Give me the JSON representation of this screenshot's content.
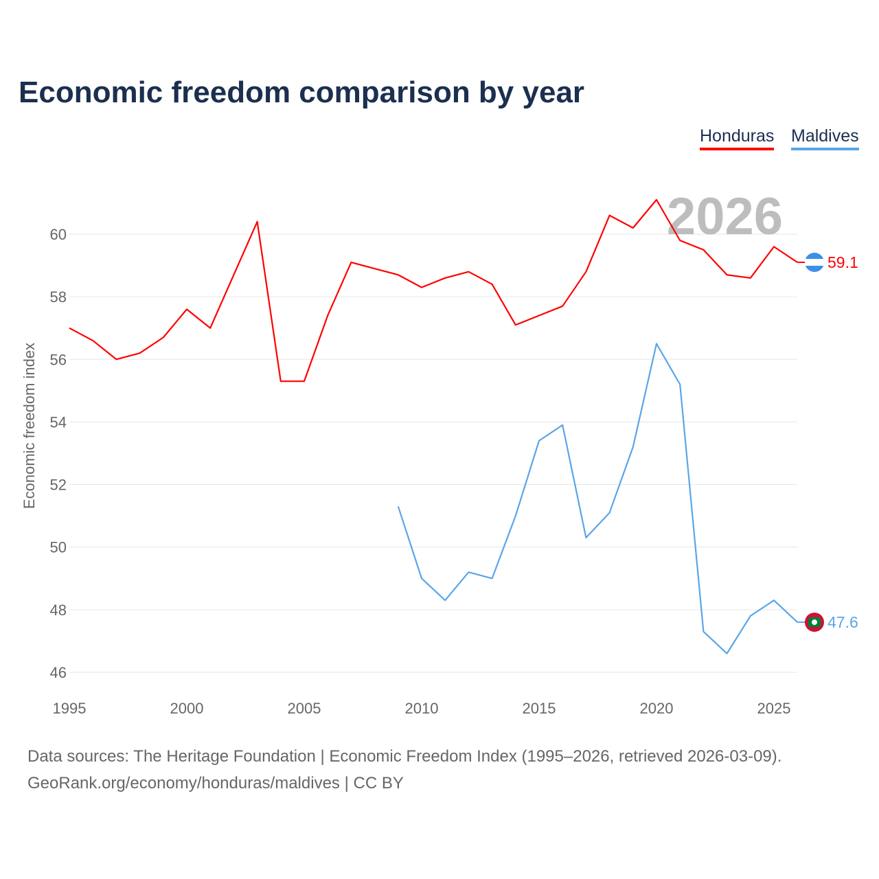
{
  "chart_data": {
    "type": "line",
    "title": "Economic freedom comparison by year",
    "xlabel": "",
    "ylabel": "Economic freedom index",
    "xlim": [
      1995,
      2026
    ],
    "ylim": [
      46,
      61.5
    ],
    "x_ticks": [
      "1995",
      "2000",
      "2005",
      "2010",
      "2015",
      "2020",
      "2025"
    ],
    "y_ticks": [
      "46",
      "48",
      "50",
      "52",
      "54",
      "56",
      "58",
      "60"
    ],
    "grid": true,
    "legend_position": "top-right",
    "watermark_year": "2026",
    "series": [
      {
        "name": "Honduras",
        "color": "#ff0000",
        "end_label": "59.1",
        "x": [
          1995,
          1996,
          1997,
          1998,
          1999,
          2000,
          2001,
          2002,
          2003,
          2004,
          2005,
          2006,
          2007,
          2008,
          2009,
          2010,
          2011,
          2012,
          2013,
          2014,
          2015,
          2016,
          2017,
          2018,
          2019,
          2020,
          2021,
          2022,
          2023,
          2024,
          2025,
          2026
        ],
        "values": [
          57.0,
          56.6,
          56.0,
          56.2,
          56.7,
          57.6,
          57.0,
          58.7,
          60.4,
          55.3,
          55.3,
          57.4,
          59.1,
          58.9,
          58.7,
          58.3,
          58.6,
          58.8,
          58.4,
          57.1,
          57.4,
          57.7,
          58.8,
          60.6,
          60.2,
          61.1,
          59.8,
          59.5,
          58.7,
          58.6,
          59.6,
          59.1
        ]
      },
      {
        "name": "Maldives",
        "color": "#5aa5e8",
        "end_label": "47.6",
        "x": [
          2009,
          2010,
          2011,
          2012,
          2013,
          2014,
          2015,
          2016,
          2017,
          2018,
          2019,
          2020,
          2021,
          2022,
          2023,
          2024,
          2025,
          2026
        ],
        "values": [
          51.3,
          49.0,
          48.3,
          49.2,
          49.0,
          51.0,
          53.4,
          53.9,
          50.3,
          51.1,
          53.2,
          56.5,
          55.2,
          47.3,
          46.6,
          47.8,
          48.3,
          47.6
        ]
      }
    ]
  },
  "footer": {
    "line1": "Data sources: The Heritage Foundation | Economic Freedom Index (1995–2026, retrieved 2026-03-09).",
    "line2": "GeoRank.org/economy/honduras/maldives | CC BY"
  }
}
